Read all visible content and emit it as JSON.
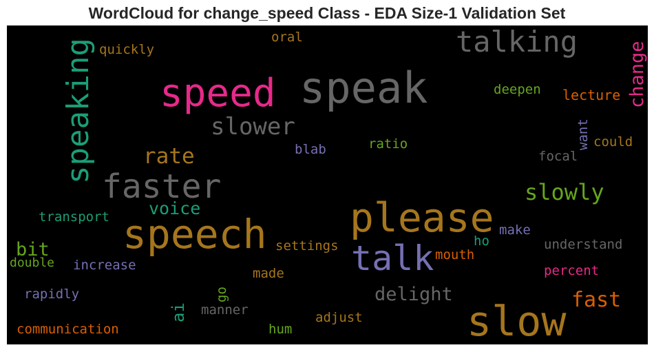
{
  "chart_data": {
    "type": "wordcloud",
    "title": "WordCloud for change_speed Class - EDA Size-1 Validation Set",
    "background": "#000000",
    "palette": [
      "#1b9e77",
      "#d95f02",
      "#7570b3",
      "#e7298a",
      "#66a61e",
      "#a6761d",
      "#666666"
    ],
    "words": [
      {
        "text": "speak",
        "color": "#666666"
      },
      {
        "text": "speed",
        "color": "#e7298a"
      },
      {
        "text": "talking",
        "color": "#666666"
      },
      {
        "text": "change",
        "color": "#e7298a",
        "orientation": "vertical"
      },
      {
        "text": "speaking",
        "color": "#1b9e77",
        "orientation": "vertical"
      },
      {
        "text": "quickly",
        "color": "#a6761d"
      },
      {
        "text": "oral",
        "color": "#a6761d"
      },
      {
        "text": "deepen",
        "color": "#66a61e"
      },
      {
        "text": "lecture",
        "color": "#d95f02"
      },
      {
        "text": "slower",
        "color": "#666666"
      },
      {
        "text": "rate",
        "color": "#a6761d"
      },
      {
        "text": "blab",
        "color": "#7570b3"
      },
      {
        "text": "ratio",
        "color": "#66a61e"
      },
      {
        "text": "want",
        "color": "#7570b3",
        "orientation": "vertical"
      },
      {
        "text": "could",
        "color": "#a6761d"
      },
      {
        "text": "focal",
        "color": "#666666"
      },
      {
        "text": "faster",
        "color": "#666666"
      },
      {
        "text": "slowly",
        "color": "#66a61e"
      },
      {
        "text": "voice",
        "color": "#1b9e77"
      },
      {
        "text": "please",
        "color": "#a6761d"
      },
      {
        "text": "transport",
        "color": "#1b9e77"
      },
      {
        "text": "speech",
        "color": "#a6761d"
      },
      {
        "text": "make",
        "color": "#7570b3"
      },
      {
        "text": "bit",
        "color": "#66a61e"
      },
      {
        "text": "settings",
        "color": "#a6761d"
      },
      {
        "text": "talk",
        "color": "#7570b3"
      },
      {
        "text": "ho",
        "color": "#1b9e77"
      },
      {
        "text": "understand",
        "color": "#666666"
      },
      {
        "text": "double",
        "color": "#66a61e"
      },
      {
        "text": "increase",
        "color": "#7570b3"
      },
      {
        "text": "mouth",
        "color": "#d95f02"
      },
      {
        "text": "percent",
        "color": "#e7298a"
      },
      {
        "text": "made",
        "color": "#a6761d"
      },
      {
        "text": "rapidly",
        "color": "#7570b3"
      },
      {
        "text": "go",
        "color": "#66a61e",
        "orientation": "vertical"
      },
      {
        "text": "delight",
        "color": "#666666"
      },
      {
        "text": "fast",
        "color": "#d95f02"
      },
      {
        "text": "ai",
        "color": "#1b9e77",
        "orientation": "vertical"
      },
      {
        "text": "manner",
        "color": "#666666"
      },
      {
        "text": "adjust",
        "color": "#a6761d"
      },
      {
        "text": "slow",
        "color": "#a6761d"
      },
      {
        "text": "communication",
        "color": "#d95f02"
      },
      {
        "text": "hum",
        "color": "#66a61e"
      }
    ]
  }
}
